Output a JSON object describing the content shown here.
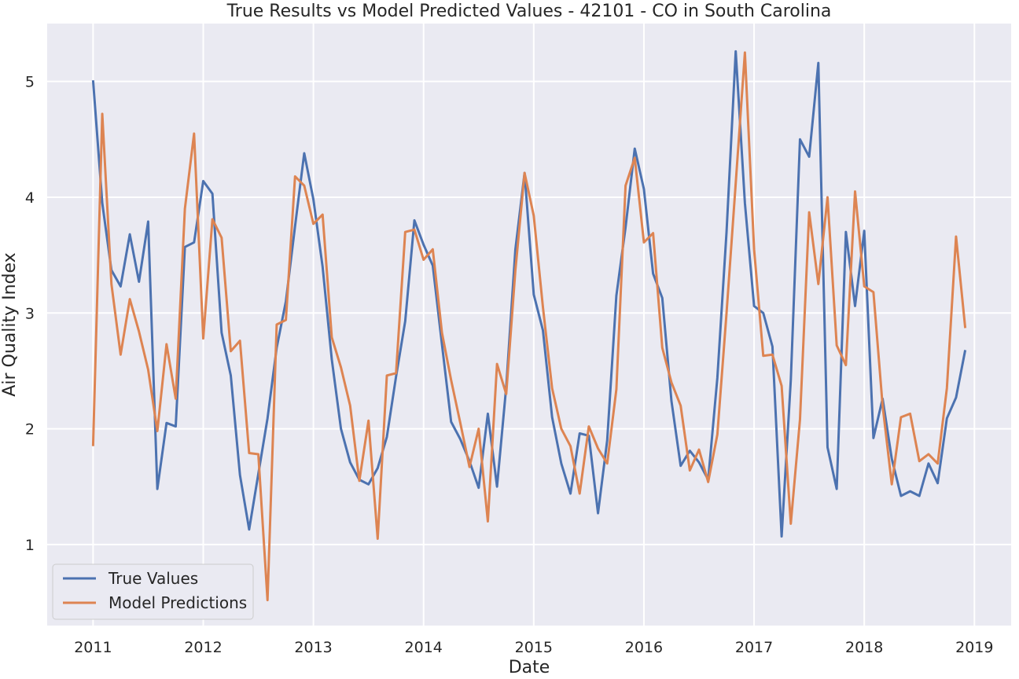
{
  "chart_data": {
    "type": "line",
    "title": "True Results vs Model Predicted Values - 42101 - CO in South Carolina",
    "xlabel": "Date",
    "ylabel": "Air Quality Index",
    "x_start": "2011-01",
    "x_ticks": [
      "2011",
      "2012",
      "2013",
      "2014",
      "2015",
      "2016",
      "2017",
      "2018",
      "2019"
    ],
    "y_ticks": [
      "1",
      "2",
      "3",
      "4",
      "5"
    ],
    "xlim": [
      "2010-08",
      "2019-05"
    ],
    "ylim": [
      0.3,
      5.5
    ],
    "grid": true,
    "legend_position": "lower-left",
    "series": [
      {
        "name": "True Values",
        "color": "#4c72b0",
        "values": [
          5.01,
          3.95,
          3.37,
          3.23,
          3.68,
          3.27,
          3.79,
          1.48,
          2.05,
          2.02,
          3.57,
          3.61,
          4.14,
          4.03,
          2.83,
          2.46,
          1.6,
          1.13,
          1.61,
          2.09,
          2.7,
          3.1,
          3.75,
          4.38,
          3.98,
          3.4,
          2.6,
          2.0,
          1.71,
          1.56,
          1.52,
          1.66,
          1.93,
          2.45,
          2.93,
          3.8,
          3.59,
          3.41,
          2.73,
          2.06,
          1.91,
          1.72,
          1.49,
          2.13,
          1.5,
          2.36,
          3.55,
          4.21,
          3.16,
          2.85,
          2.1,
          1.7,
          1.44,
          1.96,
          1.94,
          1.27,
          1.9,
          3.15,
          3.74,
          4.42,
          4.07,
          3.34,
          3.13,
          2.24,
          1.68,
          1.81,
          1.71,
          1.56,
          2.44,
          3.7,
          5.26,
          3.95,
          3.06,
          3.0,
          2.71,
          1.07,
          2.42,
          4.5,
          4.35,
          5.16,
          1.84,
          1.48,
          3.7,
          3.06,
          3.71,
          1.92,
          2.26,
          1.74,
          1.42,
          1.46,
          1.42,
          1.7,
          1.53,
          2.09,
          2.27,
          2.68
        ]
      },
      {
        "name": "Model Predictions",
        "color": "#dd8452",
        "values": [
          1.85,
          4.72,
          3.25,
          2.64,
          3.12,
          2.84,
          2.51,
          1.98,
          2.73,
          2.26,
          3.9,
          4.55,
          2.78,
          3.81,
          3.65,
          2.67,
          2.76,
          1.79,
          1.78,
          0.52,
          2.9,
          2.94,
          4.18,
          4.1,
          3.77,
          3.85,
          2.79,
          2.53,
          2.2,
          1.55,
          2.07,
          1.05,
          2.46,
          2.48,
          3.7,
          3.72,
          3.46,
          3.55,
          2.83,
          2.42,
          2.05,
          1.67,
          2.0,
          1.2,
          2.56,
          2.3,
          3.37,
          4.21,
          3.84,
          3.05,
          2.35,
          2.0,
          1.85,
          1.44,
          2.02,
          1.83,
          1.7,
          2.34,
          4.1,
          4.34,
          3.61,
          3.69,
          2.7,
          2.4,
          2.2,
          1.64,
          1.82,
          1.54,
          1.95,
          3.0,
          4.12,
          5.25,
          3.55,
          2.63,
          2.64,
          2.37,
          1.18,
          2.08,
          3.87,
          3.25,
          4.0,
          2.72,
          2.55,
          4.05,
          3.23,
          3.18,
          2.2,
          1.52,
          2.1,
          2.13,
          1.72,
          1.78,
          1.7,
          2.35,
          3.66,
          2.87
        ]
      }
    ]
  }
}
